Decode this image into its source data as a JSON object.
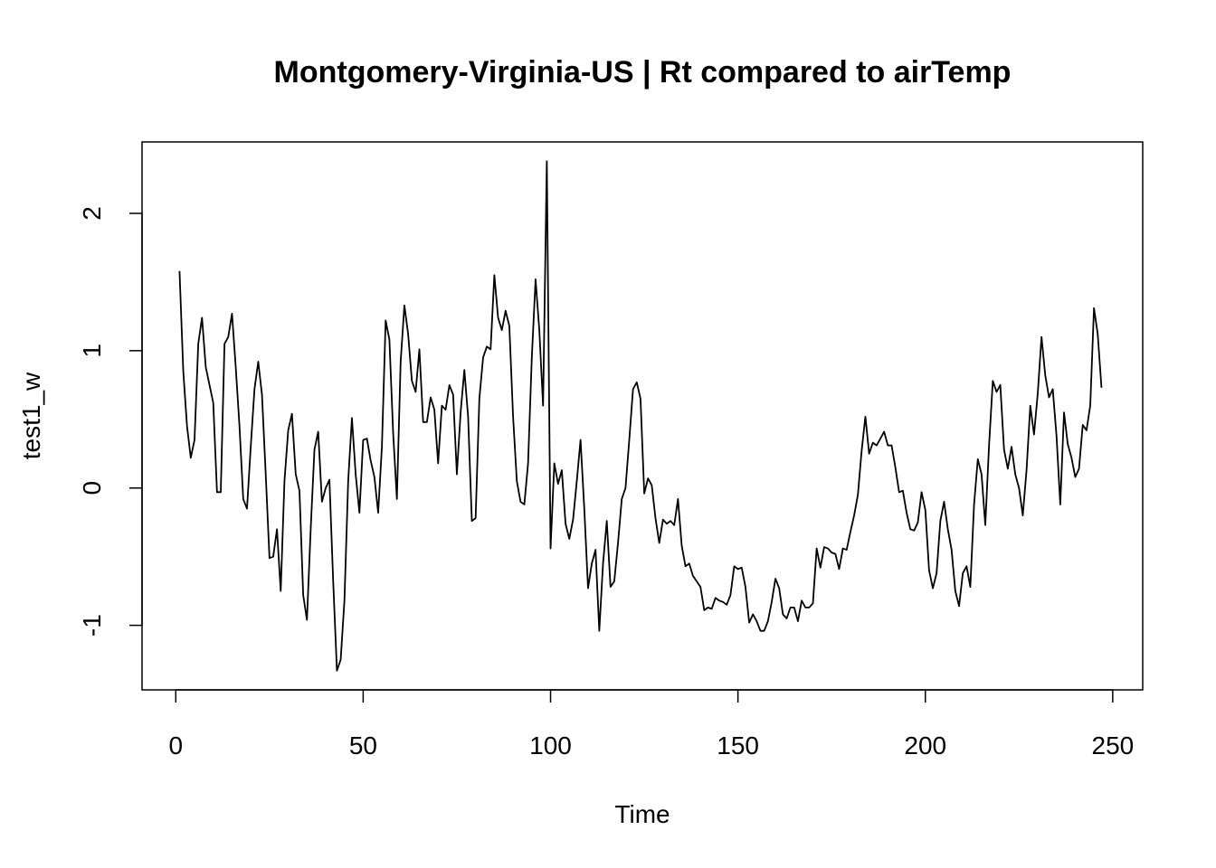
{
  "chart_data": {
    "type": "line",
    "title": "Montgomery-Virginia-US | Rt compared to airTemp",
    "xlabel": "Time",
    "ylabel": "test1_w",
    "xlim": [
      -9,
      258
    ],
    "ylim": [
      -1.47,
      2.52
    ],
    "x_ticks": [
      0,
      50,
      100,
      150,
      200,
      250
    ],
    "x_tick_labels": [
      "0",
      "50",
      "100",
      "150",
      "200",
      "250"
    ],
    "y_ticks": [
      -1,
      0,
      1,
      2
    ],
    "y_tick_labels": [
      "-1",
      "0",
      "1",
      "2"
    ],
    "grid": false,
    "legend": "none",
    "line_color": "#000000",
    "series": [
      {
        "x_start": 1,
        "x_step": 1,
        "values": [
          1.58,
          0.85,
          0.45,
          0.22,
          0.35,
          1.05,
          1.24,
          0.88,
          0.75,
          0.62,
          -0.03,
          -0.03,
          1.05,
          1.1,
          1.27,
          0.88,
          0.45,
          -0.08,
          -0.15,
          0.3,
          0.72,
          0.92,
          0.68,
          0.1,
          -0.51,
          -0.5,
          -0.3,
          -0.75,
          0.05,
          0.42,
          0.54,
          0.1,
          -0.02,
          -0.78,
          -0.96,
          -0.3,
          0.28,
          0.41,
          -0.1,
          0.0,
          0.06,
          -0.68,
          -1.33,
          -1.25,
          -0.82,
          0.05,
          0.51,
          0.1,
          -0.18,
          0.35,
          0.36,
          0.2,
          0.08,
          -0.18,
          0.3,
          1.22,
          1.08,
          0.4,
          -0.08,
          0.92,
          1.33,
          1.12,
          0.78,
          0.7,
          1.01,
          0.48,
          0.48,
          0.66,
          0.57,
          0.18,
          0.6,
          0.57,
          0.75,
          0.68,
          0.1,
          0.55,
          0.86,
          0.52,
          -0.24,
          -0.22,
          0.65,
          0.95,
          1.03,
          1.01,
          1.55,
          1.24,
          1.15,
          1.29,
          1.18,
          0.52,
          0.05,
          -0.1,
          -0.12,
          0.18,
          0.95,
          1.52,
          1.15,
          0.6,
          2.38,
          -0.44,
          0.18,
          0.03,
          0.13,
          -0.26,
          -0.37,
          -0.23,
          0.05,
          0.35,
          -0.15,
          -0.73,
          -0.55,
          -0.45,
          -1.04,
          -0.55,
          -0.24,
          -0.72,
          -0.68,
          -0.4,
          -0.08,
          0.0,
          0.35,
          0.72,
          0.77,
          0.65,
          -0.04,
          0.07,
          0.02,
          -0.22,
          -0.4,
          -0.23,
          -0.26,
          -0.24,
          -0.27,
          -0.08,
          -0.42,
          -0.57,
          -0.55,
          -0.64,
          -0.68,
          -0.72,
          -0.89,
          -0.87,
          -0.88,
          -0.8,
          -0.82,
          -0.83,
          -0.85,
          -0.78,
          -0.57,
          -0.59,
          -0.58,
          -0.72,
          -0.98,
          -0.92,
          -0.97,
          -1.04,
          -1.04,
          -0.97,
          -0.83,
          -0.66,
          -0.73,
          -0.92,
          -0.95,
          -0.87,
          -0.87,
          -0.97,
          -0.82,
          -0.87,
          -0.87,
          -0.84,
          -0.44,
          -0.58,
          -0.43,
          -0.44,
          -0.47,
          -0.48,
          -0.59,
          -0.44,
          -0.45,
          -0.32,
          -0.2,
          -0.05,
          0.27,
          0.52,
          0.25,
          0.33,
          0.31,
          0.36,
          0.41,
          0.31,
          0.31,
          0.15,
          -0.03,
          -0.02,
          -0.18,
          -0.3,
          -0.31,
          -0.25,
          -0.03,
          -0.16,
          -0.6,
          -0.73,
          -0.62,
          -0.24,
          -0.1,
          -0.3,
          -0.45,
          -0.75,
          -0.86,
          -0.62,
          -0.57,
          -0.72,
          -0.12,
          0.21,
          0.1,
          -0.27,
          0.31,
          0.78,
          0.7,
          0.75,
          0.28,
          0.14,
          0.3,
          0.1,
          0.0,
          -0.2,
          0.13,
          0.6,
          0.39,
          0.69,
          1.1,
          0.82,
          0.66,
          0.72,
          0.38,
          -0.12,
          0.55,
          0.32,
          0.22,
          0.08,
          0.14,
          0.46,
          0.42,
          0.6,
          1.31,
          1.12,
          0.73
        ]
      }
    ]
  }
}
